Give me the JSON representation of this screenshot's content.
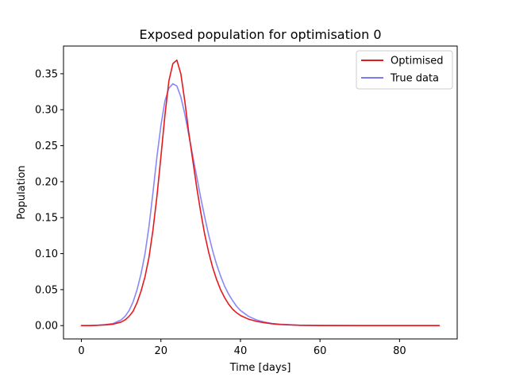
{
  "chart_data": {
    "type": "line",
    "title": "Exposed population for optimisation 0",
    "xlabel": "Time [days]",
    "ylabel": "Population",
    "xlim": [
      -4.5,
      94.5
    ],
    "ylim": [
      -0.0185,
      0.3885
    ],
    "xticks": [
      0,
      20,
      40,
      60,
      80
    ],
    "yticks": [
      0.0,
      0.05,
      0.1,
      0.15,
      0.2,
      0.25,
      0.3,
      0.35
    ],
    "ytick_labels": [
      "0.00",
      "0.05",
      "0.10",
      "0.15",
      "0.20",
      "0.25",
      "0.30",
      "0.35"
    ],
    "grid": false,
    "legend": "top-right",
    "series": [
      {
        "name": "Optimised",
        "color": "#e41a1c",
        "x": [
          0,
          2,
          4,
          6,
          8,
          10,
          11,
          12,
          13,
          14,
          15,
          16,
          17,
          18,
          19,
          20,
          21,
          22,
          23,
          24,
          25,
          26,
          27,
          28,
          29,
          30,
          31,
          32,
          33,
          34,
          35,
          36,
          37,
          38,
          39,
          40,
          42,
          44,
          46,
          48,
          50,
          55,
          60,
          70,
          80,
          90
        ],
        "y": [
          0.0,
          0.0,
          0.0005,
          0.001,
          0.002,
          0.005,
          0.008,
          0.013,
          0.02,
          0.032,
          0.048,
          0.068,
          0.095,
          0.133,
          0.18,
          0.235,
          0.292,
          0.34,
          0.364,
          0.369,
          0.35,
          0.312,
          0.268,
          0.23,
          0.192,
          0.158,
          0.127,
          0.102,
          0.081,
          0.064,
          0.05,
          0.039,
          0.03,
          0.023,
          0.018,
          0.014,
          0.009,
          0.006,
          0.004,
          0.0025,
          0.0015,
          0.0005,
          0.0002,
          0.0,
          0.0,
          0.0
        ]
      },
      {
        "name": "True data",
        "color": "#7b7bf5",
        "x": [
          0,
          2,
          4,
          6,
          8,
          10,
          11,
          12,
          13,
          14,
          15,
          16,
          17,
          18,
          19,
          20,
          21,
          22,
          23,
          24,
          25,
          26,
          27,
          28,
          29,
          30,
          31,
          32,
          33,
          34,
          35,
          36,
          37,
          38,
          39,
          40,
          42,
          44,
          46,
          48,
          50,
          55,
          60,
          70,
          80,
          90
        ],
        "y": [
          0.0,
          0.0,
          0.0005,
          0.0015,
          0.003,
          0.008,
          0.013,
          0.021,
          0.033,
          0.05,
          0.072,
          0.1,
          0.138,
          0.185,
          0.235,
          0.278,
          0.312,
          0.33,
          0.336,
          0.333,
          0.318,
          0.294,
          0.265,
          0.236,
          0.207,
          0.178,
          0.151,
          0.126,
          0.104,
          0.085,
          0.069,
          0.055,
          0.044,
          0.035,
          0.027,
          0.021,
          0.013,
          0.008,
          0.005,
          0.003,
          0.002,
          0.0005,
          0.0002,
          0.0,
          0.0,
          0.0
        ]
      }
    ]
  }
}
